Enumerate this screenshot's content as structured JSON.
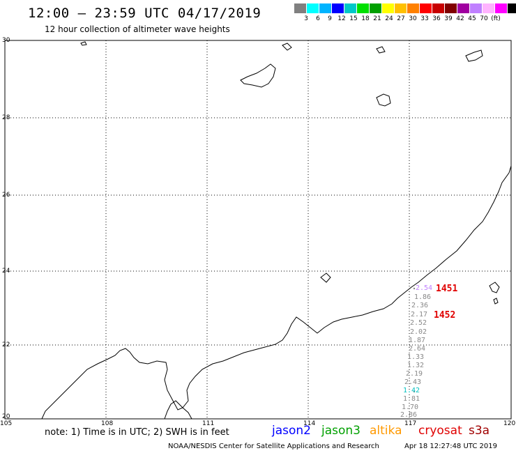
{
  "header": {
    "title": "12:00 – 23:59 UTC 04/17/2019",
    "subtitle": "12 hour collection of altimeter wave heights"
  },
  "color_scale": {
    "colors": [
      "#808080",
      "#00ffff",
      "#00b4ff",
      "#0000ff",
      "#00c8c8",
      "#00e000",
      "#00a000",
      "#ffff00",
      "#ffc000",
      "#ff8000",
      "#ff0000",
      "#c80000",
      "#800000",
      "#a000a0",
      "#c080ff",
      "#ffb4ff",
      "#ff00ff",
      "#000000"
    ],
    "labels": [
      "3",
      "6",
      "9",
      "12",
      "15",
      "18",
      "21",
      "24",
      "27",
      "30",
      "33",
      "36",
      "39",
      "42",
      "45",
      "70",
      "(ft)"
    ]
  },
  "map": {
    "lat_labels": [
      "30",
      "28",
      "26",
      "24",
      "22",
      "20"
    ],
    "lon_labels": [
      "105",
      "108",
      "111",
      "114",
      "117",
      "120"
    ]
  },
  "track": {
    "values": [
      "1.86",
      "2.36",
      "2.17",
      "2.52",
      "2.02",
      "1.87",
      "2.64",
      "1.33",
      "1.32",
      "2.19",
      "2.43",
      "1.42",
      "1.81",
      "1.70",
      "2.86"
    ],
    "highlight_value": "1.42",
    "highlight_color": "#00c0c0",
    "top_value": "2.54",
    "top_color": "#c080ff"
  },
  "passes": [
    "1451",
    "1452"
  ],
  "footer": {
    "note": "note:  1) Time is in UTC;  2) SWH is in feet",
    "satellites": [
      {
        "name": "jason2",
        "color": "#0000ff"
      },
      {
        "name": "jason3",
        "color": "#00a000"
      },
      {
        "name": "altika",
        "color": "#ff9900"
      },
      {
        "name": "cryosat",
        "color": "#e00000"
      },
      {
        "name": "s3a",
        "color": "#a00000"
      }
    ],
    "credit": "NOAA/NESDIS Center for Satellite Applications and Research",
    "timestamp": "Apr 18 12:27:48 UTC 2019"
  }
}
